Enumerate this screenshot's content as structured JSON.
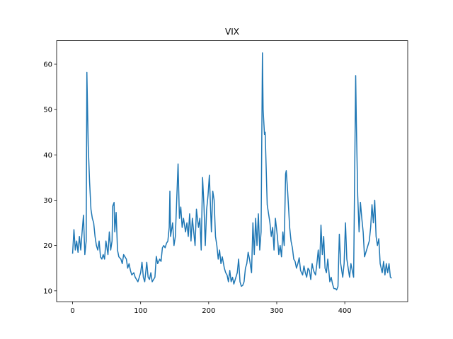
{
  "chart_data": {
    "type": "line",
    "title": "VIX",
    "x": [
      0,
      2,
      4,
      6,
      8,
      10,
      12,
      14,
      16,
      18,
      20,
      21,
      23,
      25,
      27,
      29,
      31,
      33,
      35,
      37,
      39,
      41,
      43,
      45,
      47,
      49,
      52,
      54,
      56,
      58,
      59,
      61,
      62,
      64,
      66,
      68,
      71,
      73,
      75,
      77,
      79,
      81,
      83,
      85,
      87,
      90,
      92,
      94,
      96,
      98,
      100,
      102,
      104,
      106,
      109,
      111,
      113,
      115,
      117,
      119,
      121,
      123,
      125,
      128,
      130,
      132,
      134,
      136,
      138,
      140,
      142,
      143,
      144,
      147,
      149,
      151,
      153,
      155,
      157,
      159,
      161,
      163,
      166,
      168,
      170,
      172,
      174,
      176,
      178,
      180,
      182,
      185,
      187,
      189,
      191,
      193,
      195,
      197,
      199,
      201,
      204,
      206,
      208,
      210,
      212,
      214,
      216,
      218,
      220,
      223,
      225,
      227,
      229,
      231,
      233,
      235,
      237,
      239,
      242,
      244,
      246,
      248,
      250,
      252,
      254,
      256,
      258,
      260,
      263,
      265,
      267,
      269,
      271,
      273,
      275,
      277,
      279,
      280,
      282,
      283,
      286,
      288,
      290,
      292,
      294,
      296,
      298,
      301,
      303,
      305,
      307,
      309,
      311,
      313,
      314,
      316,
      319,
      321,
      323,
      325,
      327,
      329,
      331,
      333,
      335,
      338,
      340,
      342,
      344,
      346,
      348,
      350,
      352,
      354,
      357,
      359,
      361,
      363,
      365,
      367,
      369,
      371,
      373,
      375,
      378,
      380,
      382,
      384,
      386,
      388,
      390,
      392,
      394,
      397,
      399,
      401,
      403,
      405,
      407,
      409,
      411,
      413,
      416,
      417,
      419,
      421,
      423,
      425,
      427,
      429,
      431,
      434,
      436,
      438,
      440,
      442,
      444,
      446,
      448,
      450,
      452,
      455,
      457,
      459,
      461,
      463,
      465,
      467,
      469
    ],
    "series": [
      {
        "name": "VIX",
        "color": "#1f77b4",
        "values": [
          18.2,
          23.5,
          19,
          21,
          18.5,
          22,
          19,
          23,
          26.7,
          18,
          21,
          58.2,
          42,
          34,
          28,
          26,
          25,
          22,
          20,
          19,
          21,
          17.5,
          17,
          18,
          17,
          21,
          18,
          23,
          19,
          21,
          28.7,
          29.5,
          23,
          27.3,
          19,
          17.5,
          17,
          16,
          18,
          17.5,
          17,
          15,
          16,
          14.5,
          13.5,
          14,
          13,
          12.5,
          12,
          13,
          14,
          16.3,
          13,
          12,
          16.3,
          13,
          12.5,
          14,
          12,
          12.5,
          13,
          17.6,
          16,
          17,
          16.5,
          19.5,
          20,
          19.5,
          20.5,
          21,
          24,
          32,
          22,
          25,
          20,
          22,
          30,
          38,
          26,
          28.5,
          24,
          26,
          23,
          25,
          22,
          27,
          21,
          26,
          23,
          20,
          28,
          24,
          26,
          19,
          35,
          29,
          20,
          28,
          31,
          35.5,
          23,
          32,
          30,
          22,
          20,
          17,
          19,
          16,
          17.5,
          15,
          14,
          13.5,
          12,
          14.5,
          12,
          13,
          11.5,
          12.5,
          14,
          17,
          12,
          11,
          11.2,
          12,
          15,
          16,
          18.5,
          17,
          14,
          25,
          18,
          26,
          20,
          27,
          19,
          23,
          62.5,
          50,
          44.5,
          45,
          29,
          27,
          25,
          22,
          24,
          19,
          26,
          22,
          18,
          20,
          17.5,
          23,
          20,
          35.8,
          36.5,
          32,
          24,
          21,
          19.5,
          17,
          16.5,
          15,
          16,
          17.3,
          14.5,
          13.5,
          15.5,
          14,
          13,
          15,
          14.5,
          12.5,
          16,
          14.5,
          13.5,
          16,
          19,
          15,
          24.5,
          18,
          22,
          15,
          14,
          17,
          12,
          13,
          11.5,
          10.5,
          10.5,
          10.2,
          11,
          22.5,
          16,
          13,
          16,
          25,
          17,
          15,
          13,
          16,
          14.5,
          13,
          57.5,
          47,
          31,
          23,
          29.5,
          26,
          23,
          17.5,
          18.5,
          20,
          21,
          24,
          29,
          25,
          30,
          22,
          20,
          21.5,
          16,
          14,
          16.5,
          13.5,
          16,
          14,
          16,
          13,
          12.8
        ]
      }
    ],
    "xlim": [
      -23.45,
      492.45
    ],
    "xticks": [
      0,
      100,
      200,
      300,
      400
    ],
    "ylim": [
      7.6,
      65.2
    ],
    "yticks": [
      10,
      20,
      30,
      40,
      50,
      60
    ]
  }
}
